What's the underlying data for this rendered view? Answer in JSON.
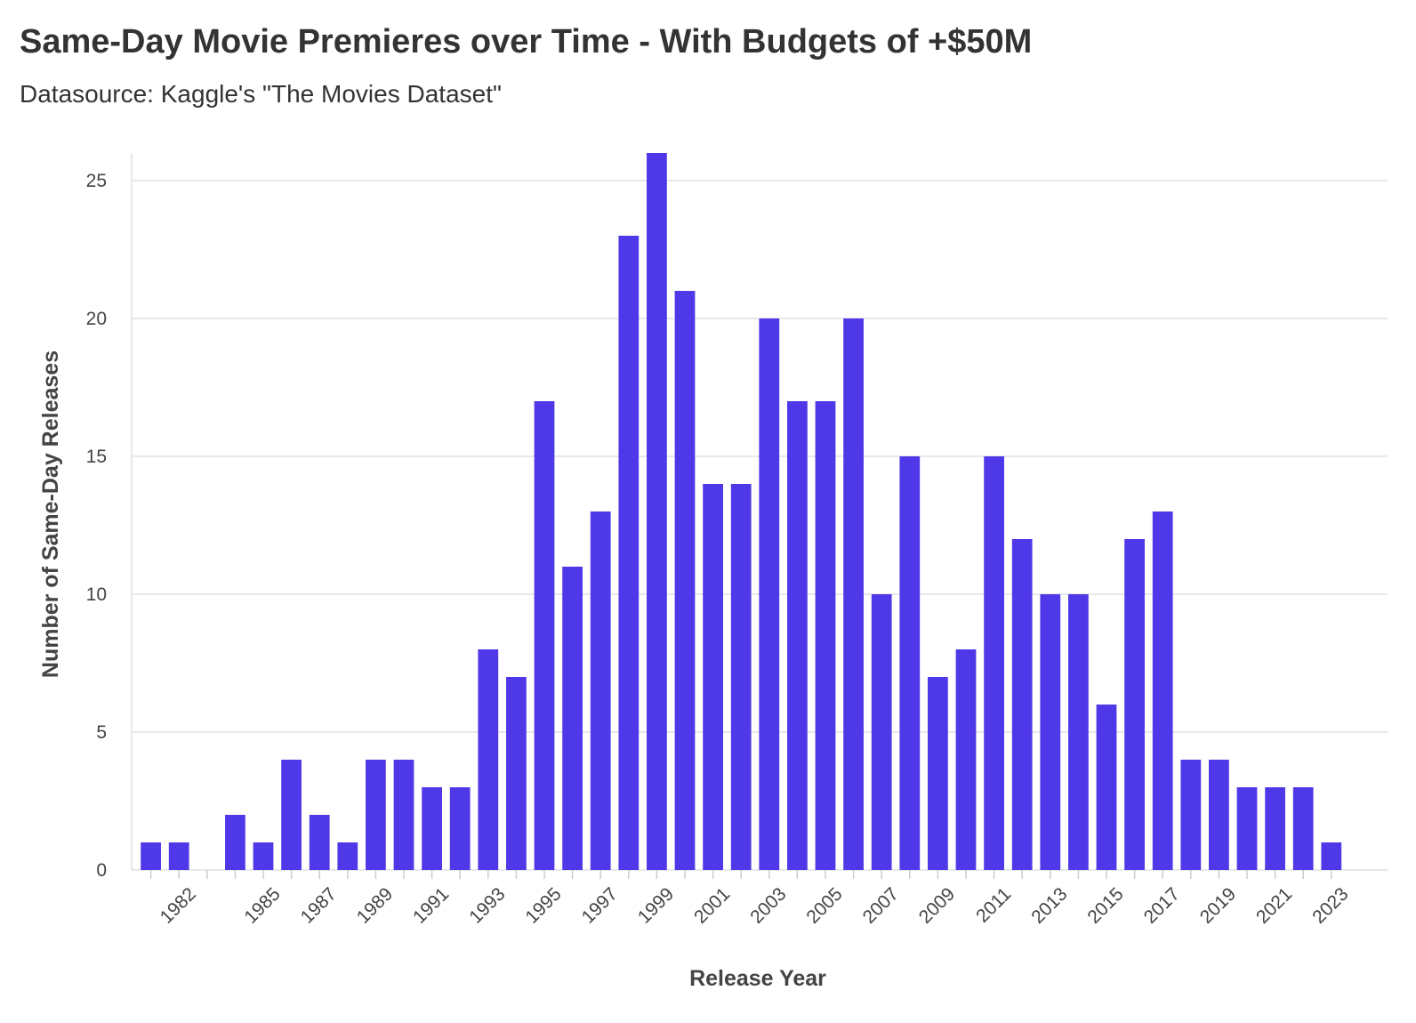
{
  "header": {
    "title": "Same-Day Movie Premieres over Time - With Budgets of +$50M",
    "subtitle": "Datasource: Kaggle's \"The Movies Dataset\""
  },
  "colors": {
    "bar": "#4f38e8",
    "grid": "#e8e8e8",
    "axis_text": "#444444",
    "title_text": "#333333"
  },
  "chart_data": {
    "type": "bar",
    "title": "Same-Day Movie Premieres over Time - With Budgets of +$50M",
    "subtitle": "Datasource: Kaggle's \"The Movies Dataset\"",
    "xlabel": "Release Year",
    "ylabel": "Number of Same-Day Releases",
    "x": [
      1981,
      1982,
      1984,
      1985,
      1986,
      1987,
      1988,
      1989,
      1990,
      1991,
      1992,
      1993,
      1994,
      1995,
      1996,
      1997,
      1998,
      1999,
      2000,
      2001,
      2002,
      2003,
      2004,
      2005,
      2006,
      2007,
      2008,
      2009,
      2010,
      2011,
      2012,
      2013,
      2014,
      2015,
      2016,
      2017,
      2018,
      2019,
      2020,
      2021,
      2022,
      2023
    ],
    "values": [
      1,
      1,
      2,
      1,
      4,
      2,
      1,
      4,
      4,
      3,
      3,
      8,
      7,
      17,
      11,
      13,
      23,
      26,
      21,
      14,
      14,
      20,
      17,
      17,
      20,
      10,
      15,
      7,
      8,
      15,
      12,
      10,
      10,
      6,
      12,
      13,
      4,
      4,
      3,
      3,
      3,
      1
    ],
    "x_tick_labels": [
      "1982",
      "1985",
      "1987",
      "1989",
      "1991",
      "1993",
      "1995",
      "1997",
      "1999",
      "2001",
      "2003",
      "2005",
      "2007",
      "2009",
      "2011",
      "2013",
      "2015",
      "2017",
      "2019",
      "2021",
      "2023"
    ],
    "y_ticks": [
      0,
      5,
      10,
      15,
      20,
      25
    ],
    "xlim": [
      1980,
      2025
    ],
    "ylim": [
      0,
      26
    ],
    "grid": true,
    "legend": false
  }
}
